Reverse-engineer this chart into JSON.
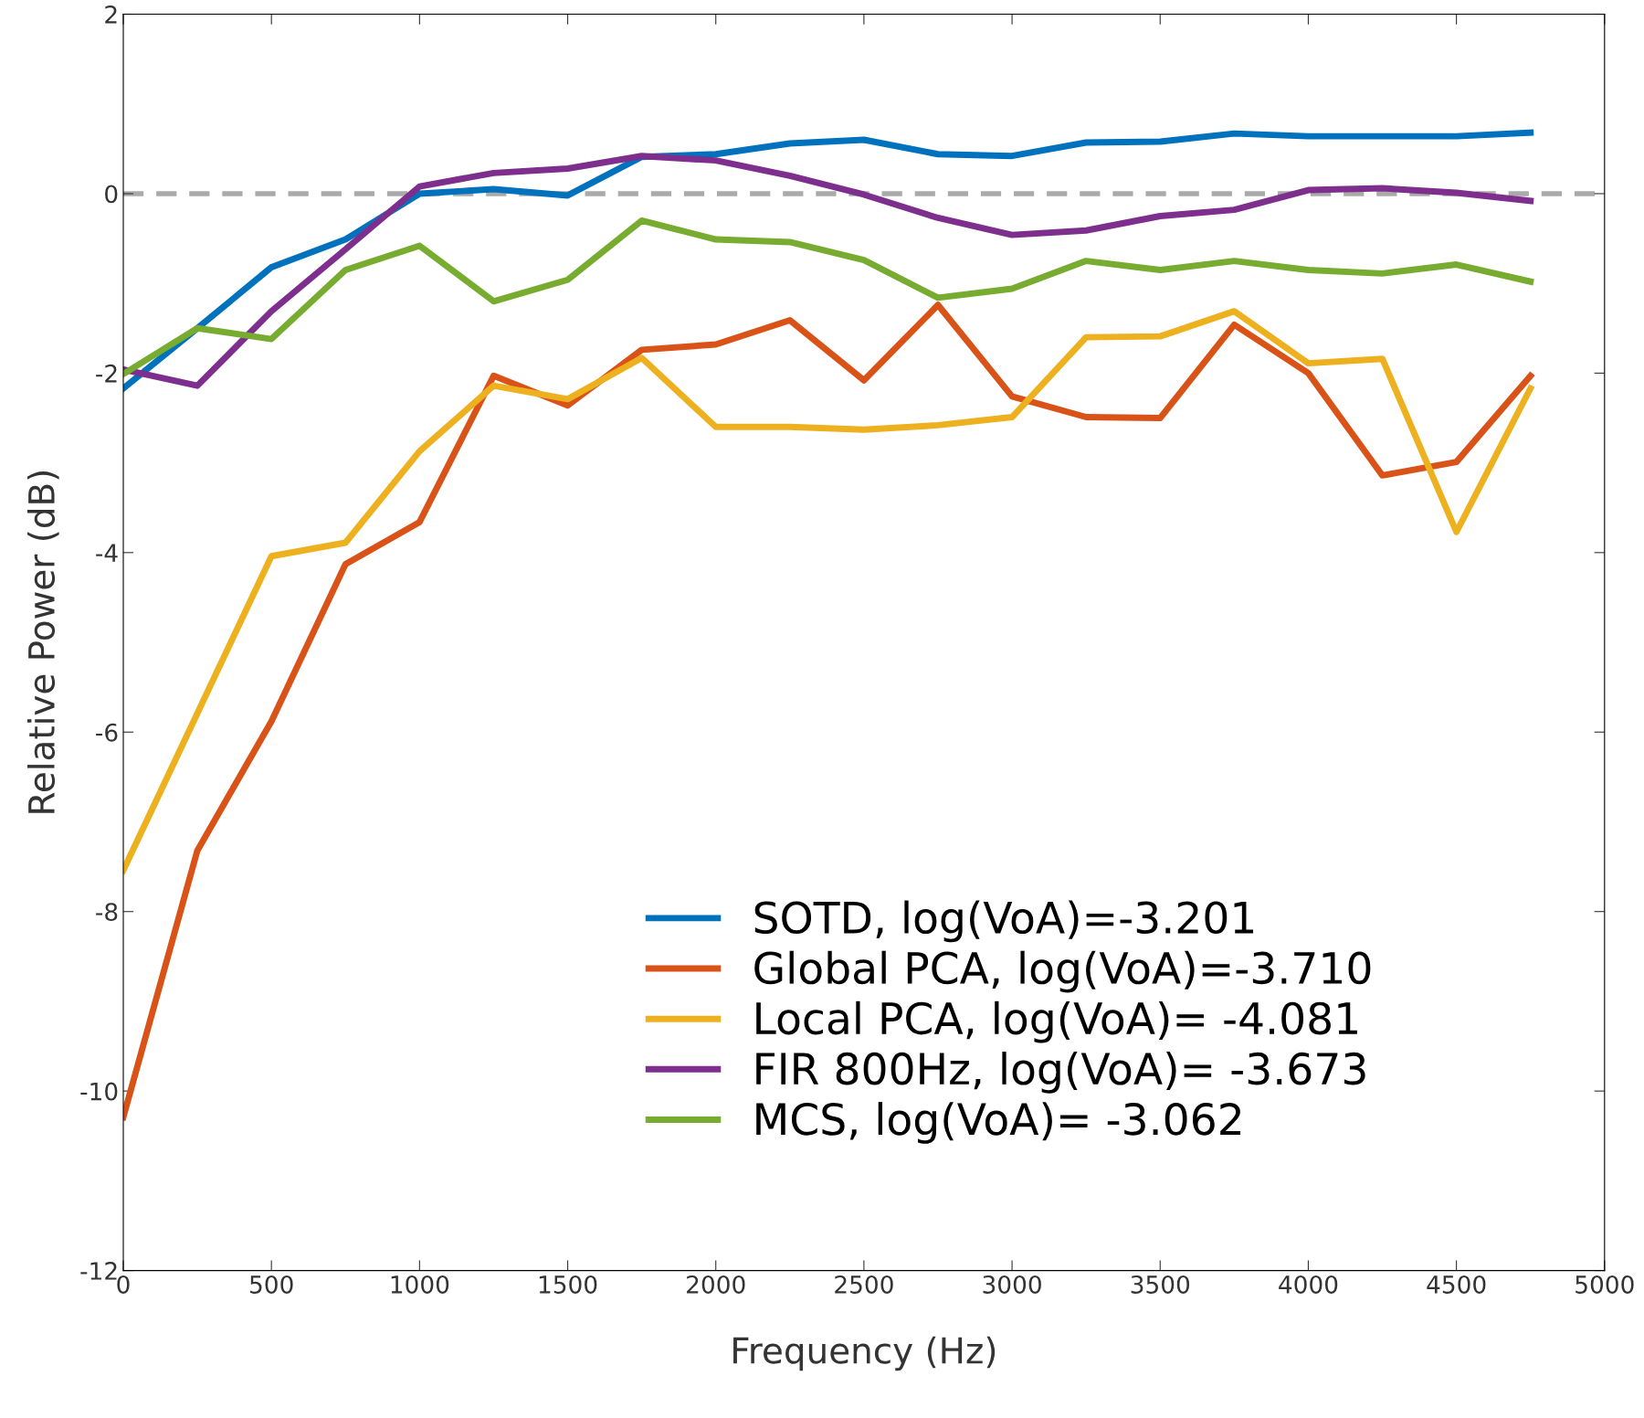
{
  "chart_data": {
    "type": "line",
    "xlabel": "Frequency (Hz)",
    "ylabel": "Relative Power (dB)",
    "x": [
      0,
      250,
      500,
      750,
      1000,
      1250,
      1500,
      1750,
      2000,
      2250,
      2500,
      2750,
      3000,
      3250,
      3500,
      3750,
      4000,
      4250,
      4500,
      4750
    ],
    "series": [
      {
        "name": "SOTD, log(VoA)=-3.201",
        "color": "#0072bd",
        "values": [
          -2.17,
          -1.5,
          -0.82,
          -0.51,
          0.0,
          0.05,
          -0.02,
          0.41,
          0.44,
          0.56,
          0.6,
          0.44,
          0.42,
          0.57,
          0.58,
          0.67,
          0.64,
          0.64,
          0.64,
          0.68
        ]
      },
      {
        "name": "Global PCA, log(VoA)=-3.710",
        "color": "#d95319",
        "values": [
          -10.29,
          -7.32,
          -5.88,
          -4.13,
          -3.66,
          -2.03,
          -2.36,
          -1.74,
          -1.68,
          -1.41,
          -2.08,
          -1.24,
          -2.26,
          -2.49,
          -2.5,
          -1.46,
          -2.0,
          -3.14,
          -2.99,
          -2.03
        ]
      },
      {
        "name": "Local PCA, log(VoA)= -4.081",
        "color": "#edb120",
        "values": [
          -7.54,
          -5.79,
          -4.04,
          -3.89,
          -2.87,
          -2.14,
          -2.29,
          -1.83,
          -2.6,
          -2.6,
          -2.63,
          -2.58,
          -2.49,
          -1.6,
          -1.59,
          -1.31,
          -1.89,
          -1.84,
          -3.77,
          -2.17
        ]
      },
      {
        "name": "FIR 800Hz, log(VoA)= -3.673",
        "color": "#7e2f8e",
        "values": [
          -1.96,
          -2.14,
          -1.31,
          -0.62,
          0.08,
          0.23,
          0.28,
          0.42,
          0.37,
          0.2,
          -0.01,
          -0.27,
          -0.46,
          -0.41,
          -0.25,
          -0.18,
          0.04,
          0.06,
          0.01,
          -0.08
        ]
      },
      {
        "name": "MCS, log(VoA)= -3.062",
        "color": "#77ac30",
        "values": [
          -2.01,
          -1.5,
          -1.62,
          -0.85,
          -0.58,
          -1.2,
          -0.96,
          -0.3,
          -0.51,
          -0.54,
          -0.74,
          -1.16,
          -1.06,
          -0.75,
          -0.85,
          -0.75,
          -0.85,
          -0.89,
          -0.79,
          -0.98
        ]
      }
    ],
    "xlim": [
      0,
      5000
    ],
    "xticks": [
      0,
      500,
      1000,
      1500,
      2000,
      2500,
      3000,
      3500,
      4000,
      4500,
      5000
    ],
    "ylim": [
      -12,
      2
    ],
    "yticks": [
      -12,
      -10,
      -8,
      -6,
      -4,
      -2,
      0,
      2
    ],
    "ref_lines": [
      {
        "axis": "y",
        "value": 0,
        "color": "#aaaaaa",
        "line_style": "dashed"
      }
    ],
    "grid": false,
    "legend": "bottom right",
    "line_style": "solid",
    "marker": "none"
  }
}
